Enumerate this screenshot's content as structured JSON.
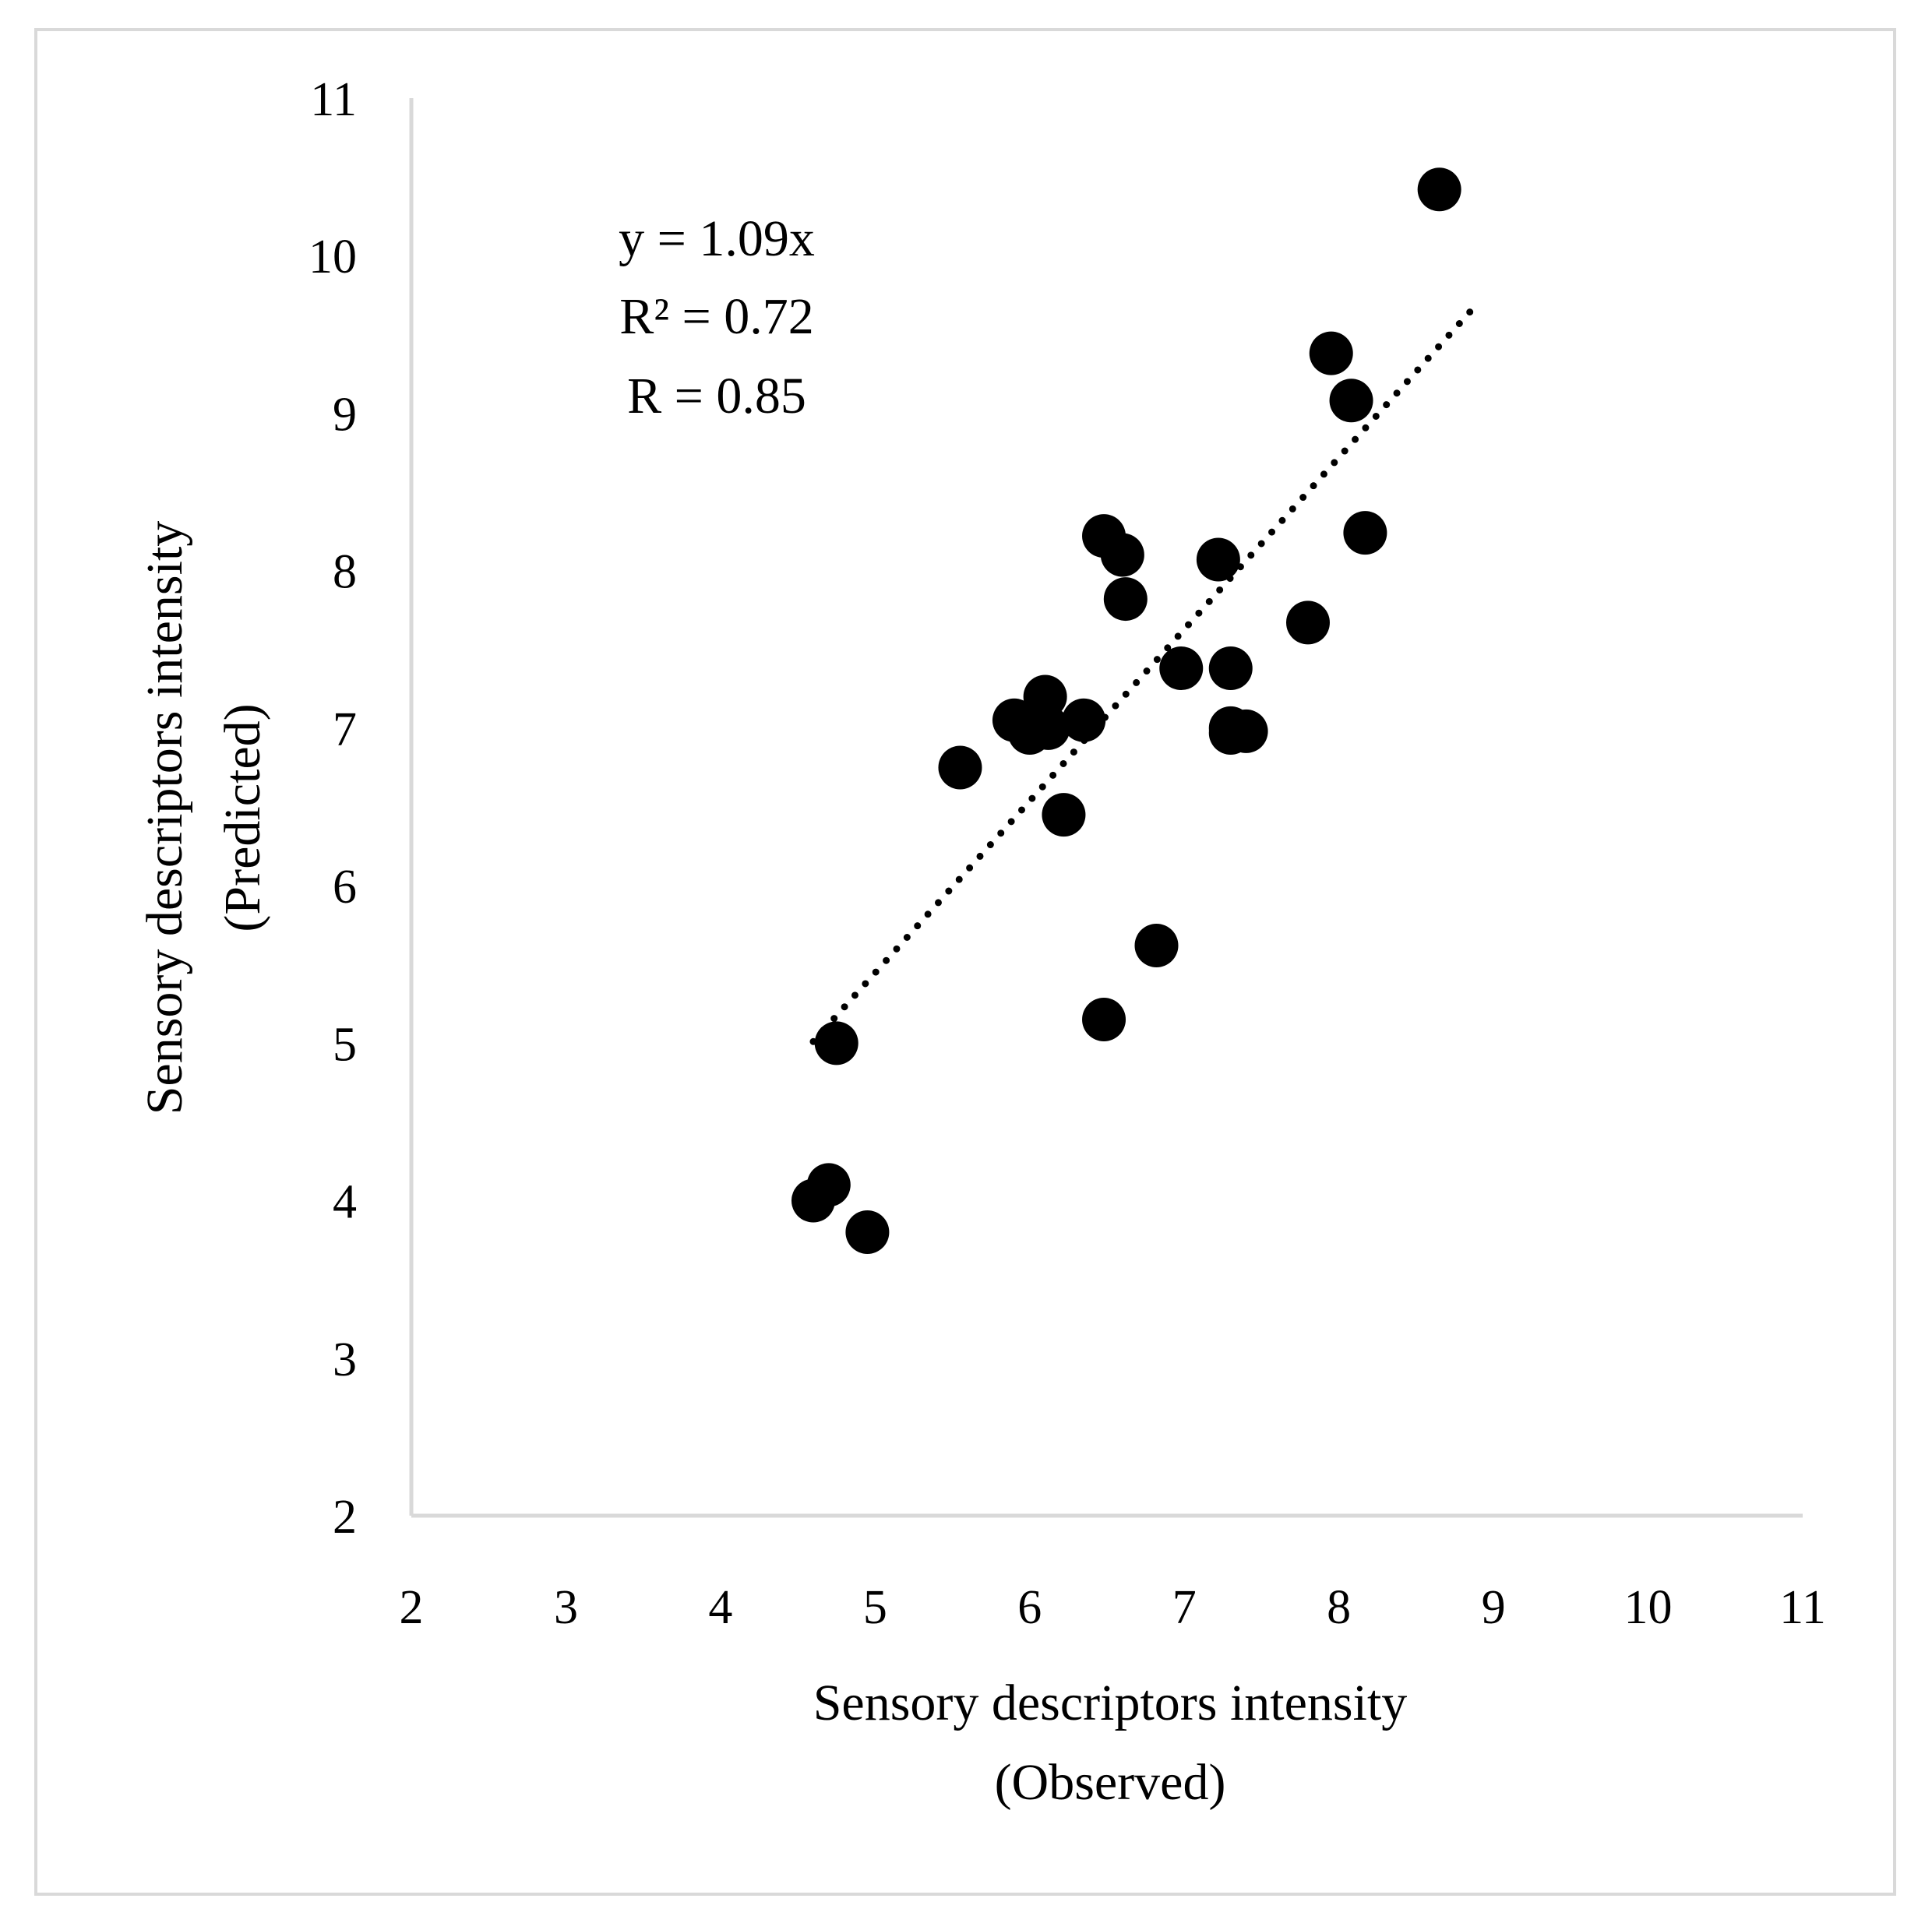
{
  "chart_data": {
    "type": "scatter",
    "title": "",
    "xlabel": [
      "Sensory descriptors intensity",
      "(Observed)"
    ],
    "ylabel": [
      "Sensory descriptors intensity",
      "(Predicted)"
    ],
    "xlim": [
      2,
      11
    ],
    "ylim": [
      2,
      11
    ],
    "xticks": [
      "2",
      "3",
      "4",
      "5",
      "6",
      "7",
      "8",
      "9",
      "10",
      "11"
    ],
    "yticks": [
      "2",
      "3",
      "4",
      "5",
      "6",
      "7",
      "8",
      "9",
      "10",
      "11"
    ],
    "grid": false,
    "legend": "none",
    "series": [
      {
        "name": "Sensory descriptors",
        "x": [
          4.75,
          4.6,
          4.7,
          4.95,
          5.55,
          5.9,
          6.0,
          6.1,
          6.12,
          6.22,
          6.35,
          6.48,
          6.48,
          6.6,
          6.62,
          6.82,
          6.98,
          7.22,
          7.3,
          7.3,
          7.3,
          7.4,
          7.8,
          7.95,
          8.08,
          8.17,
          8.65
        ],
        "y": [
          5.0,
          4.0,
          4.1,
          3.8,
          6.75,
          7.05,
          6.97,
          7.2,
          7.0,
          6.45,
          7.05,
          8.22,
          5.15,
          8.1,
          7.82,
          5.62,
          7.38,
          8.07,
          7.38,
          6.97,
          7.0,
          6.98,
          7.67,
          9.38,
          9.08,
          8.24,
          10.42
        ],
        "color": "#000000"
      }
    ],
    "trendline": {
      "style": "dotted",
      "color": "#000000",
      "x": [
        4.6,
        8.9
      ],
      "y": [
        5.01,
        9.7
      ]
    },
    "annotations": [
      "y = 1.09x",
      "R² = 0.72",
      "R = 0.85"
    ]
  },
  "colors": {
    "axis": "#d9d9d9",
    "marker": "#000000",
    "frame": "#d9d9d9"
  }
}
